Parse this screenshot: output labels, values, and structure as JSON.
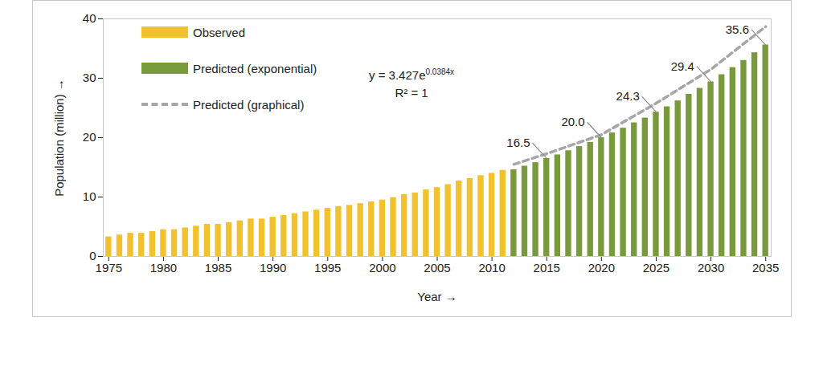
{
  "chart_data": {
    "type": "bar",
    "x_label": "Year",
    "y_label": "Population (million)",
    "xlim": [
      1974.5,
      2035.5
    ],
    "xticks": [
      1975,
      1980,
      1985,
      1990,
      1995,
      2000,
      2005,
      2010,
      2015,
      2020,
      2025,
      2030,
      2035
    ],
    "ylim": [
      0,
      40
    ],
    "yticks": [
      0,
      10,
      20,
      30,
      40
    ],
    "legend": "top-left",
    "series": [
      {
        "name": "Observed",
        "type": "bar",
        "color": "#f2c12e",
        "x": [
          1975,
          1976,
          1977,
          1978,
          1979,
          1980,
          1981,
          1982,
          1983,
          1984,
          1985,
          1986,
          1987,
          1988,
          1989,
          1990,
          1991,
          1992,
          1993,
          1994,
          1995,
          1996,
          1997,
          1998,
          1999,
          2000,
          2001,
          2002,
          2003,
          2004,
          2005,
          2006,
          2007,
          2008,
          2009,
          2010,
          2011
        ],
        "values": [
          3.3,
          3.6,
          3.9,
          3.9,
          4.2,
          4.5,
          4.5,
          4.8,
          5.1,
          5.4,
          5.4,
          5.7,
          6.0,
          6.3,
          6.3,
          6.6,
          6.9,
          7.2,
          7.5,
          7.8,
          8.1,
          8.4,
          8.6,
          8.9,
          9.2,
          9.5,
          9.9,
          10.4,
          10.7,
          11.2,
          11.6,
          12.1,
          12.7,
          13.1,
          13.6,
          14.0,
          14.5
        ]
      },
      {
        "name": "Predicted (exponential)",
        "type": "bar",
        "color": "#789a3c",
        "x": [
          2012,
          2013,
          2014,
          2015,
          2016,
          2017,
          2018,
          2019,
          2020,
          2021,
          2022,
          2023,
          2024,
          2025,
          2026,
          2027,
          2028,
          2029,
          2030,
          2031,
          2032,
          2033,
          2034,
          2035
        ],
        "values": [
          14.6,
          15.2,
          15.8,
          16.5,
          17.1,
          17.8,
          18.5,
          19.2,
          20.0,
          20.8,
          21.6,
          22.5,
          23.3,
          24.3,
          25.2,
          26.2,
          27.3,
          28.3,
          29.4,
          30.6,
          31.8,
          33.0,
          34.3,
          35.6
        ]
      },
      {
        "name": "Predicted (graphical)",
        "type": "line",
        "color": "#a6a6a6",
        "line_style": "dashed",
        "x": [
          2012,
          2015,
          2020,
          2025,
          2030,
          2035
        ],
        "values": [
          15.5,
          17.3,
          20.5,
          25.8,
          31.5,
          38.7
        ]
      }
    ],
    "annotations": [
      {
        "x": 2015,
        "y": 16.5,
        "text": "16.5"
      },
      {
        "x": 2020,
        "y": 20.0,
        "text": "20.0"
      },
      {
        "x": 2025,
        "y": 24.3,
        "text": "24.3"
      },
      {
        "x": 2030,
        "y": 29.4,
        "text": "29.4"
      },
      {
        "x": 2035,
        "y": 35.6,
        "text": "35.6"
      }
    ],
    "equation": {
      "text": "y = 3.427e",
      "exponent": "0.0384x"
    },
    "r_squared_text": "R² = 1"
  }
}
